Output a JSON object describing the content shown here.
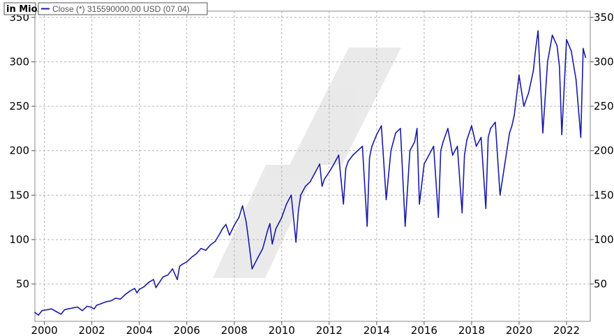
{
  "chart_data": {
    "type": "line",
    "unit_label": "in Mio",
    "legend": "Close (*) 315590000,00 USD (07.04)",
    "x_ticks": [
      "2000",
      "2002",
      "2004",
      "2006",
      "2008",
      "2010",
      "2012",
      "2014",
      "2016",
      "2018",
      "2020",
      "2022"
    ],
    "y_ticks": [
      50,
      100,
      150,
      200,
      250,
      300,
      350
    ],
    "xlim": [
      1999.6,
      2023.0
    ],
    "ylim": [
      8,
      357
    ],
    "grid": true,
    "legend_position": "top-left",
    "series": [
      {
        "color": "#1a1aa6",
        "x": [
          1999.6,
          1999.75,
          1999.9,
          2000.1,
          2000.3,
          2000.5,
          2000.7,
          2000.85,
          2001.0,
          2001.2,
          2001.4,
          2001.6,
          2001.8,
          2001.95,
          2002.1,
          2002.2,
          2002.4,
          2002.6,
          2002.8,
          2003.0,
          2003.2,
          2003.4,
          2003.6,
          2003.8,
          2003.9,
          2004.0,
          2004.2,
          2004.4,
          2004.6,
          2004.7,
          2004.8,
          2005.0,
          2005.2,
          2005.4,
          2005.6,
          2005.7,
          2005.8,
          2006.0,
          2006.2,
          2006.4,
          2006.6,
          2006.8,
          2007.0,
          2007.2,
          2007.4,
          2007.5,
          2007.65,
          2007.8,
          2008.0,
          2008.2,
          2008.35,
          2008.5,
          2008.6,
          2008.75,
          2009.0,
          2009.2,
          2009.4,
          2009.5,
          2009.6,
          2009.75,
          2010.0,
          2010.2,
          2010.4,
          2010.6,
          2010.7,
          2010.8,
          2011.0,
          2011.2,
          2011.4,
          2011.6,
          2011.7,
          2011.8,
          2012.0,
          2012.2,
          2012.4,
          2012.6,
          2012.7,
          2012.8,
          2013.0,
          2013.2,
          2013.4,
          2013.6,
          2013.7,
          2013.8,
          2014.0,
          2014.2,
          2014.4,
          2014.6,
          2014.7,
          2014.8,
          2015.0,
          2015.2,
          2015.4,
          2015.6,
          2015.7,
          2015.8,
          2016.0,
          2016.2,
          2016.4,
          2016.6,
          2016.7,
          2016.8,
          2017.0,
          2017.2,
          2017.4,
          2017.6,
          2017.7,
          2017.8,
          2018.0,
          2018.2,
          2018.4,
          2018.6,
          2018.7,
          2018.8,
          2019.0,
          2019.2,
          2019.4,
          2019.6,
          2019.7,
          2019.8,
          2020.0,
          2020.2,
          2020.4,
          2020.6,
          2020.7,
          2020.8,
          2021.0,
          2021.2,
          2021.4,
          2021.6,
          2021.7,
          2021.8,
          2022.0,
          2022.2,
          2022.4,
          2022.6,
          2022.7,
          2022.8
        ],
        "values": [
          18,
          15,
          20,
          21,
          22,
          19,
          16,
          21,
          22,
          23,
          24,
          20,
          25,
          24,
          22,
          26,
          28,
          30,
          31,
          34,
          33,
          38,
          42,
          45,
          40,
          44,
          47,
          52,
          55,
          46,
          50,
          58,
          60,
          67,
          55,
          70,
          72,
          75,
          80,
          84,
          90,
          88,
          94,
          98,
          107,
          112,
          117,
          105,
          116,
          125,
          138,
          120,
          100,
          67,
          80,
          90,
          110,
          118,
          95,
          112,
          125,
          140,
          150,
          97,
          132,
          150,
          160,
          165,
          175,
          185,
          160,
          168,
          176,
          185,
          195,
          140,
          180,
          188,
          195,
          200,
          205,
          115,
          192,
          205,
          218,
          228,
          145,
          200,
          210,
          220,
          225,
          115,
          200,
          210,
          225,
          140,
          185,
          195,
          205,
          125,
          200,
          210,
          225,
          195,
          205,
          130,
          195,
          212,
          228,
          205,
          215,
          135,
          215,
          225,
          232,
          150,
          185,
          220,
          228,
          240,
          285,
          250,
          265,
          290,
          315,
          335,
          220,
          300,
          330,
          318,
          295,
          218,
          325,
          312,
          280,
          215,
          315,
          305
        ]
      }
    ]
  }
}
